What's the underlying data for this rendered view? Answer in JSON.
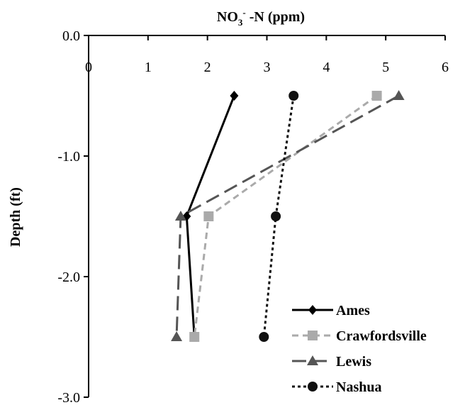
{
  "chart_data": {
    "type": "line",
    "title": {
      "main": "NO",
      "sub": "3",
      "sup": "-",
      "rest": " -N (ppm)"
    },
    "xlabel": "",
    "ylabel": "Depth (ft)",
    "xlim": [
      0,
      6
    ],
    "ylim": [
      -3.0,
      0.0
    ],
    "xticks": [
      "0",
      "1",
      "2",
      "3",
      "4",
      "5",
      "6"
    ],
    "yticks": [
      "0.0",
      "-1.0",
      "-2.0",
      "-3.0"
    ],
    "ytick_values": [
      0.0,
      -1.0,
      -2.0,
      -3.0
    ],
    "xtick_values": [
      0,
      1,
      2,
      3,
      4,
      5,
      6
    ],
    "x_axis_position": "top",
    "grid": false,
    "legend_position": "bottom-right",
    "series": [
      {
        "name": "Ames",
        "color": "#000000",
        "dash": "solid",
        "marker": "diamond",
        "points": [
          [
            2.45,
            -0.5
          ],
          [
            1.65,
            -1.5
          ],
          [
            1.78,
            -2.5
          ]
        ]
      },
      {
        "name": "Crawfordsville",
        "color": "#aaaaaa",
        "dash": "dash",
        "marker": "square",
        "points": [
          [
            4.85,
            -0.5
          ],
          [
            2.02,
            -1.5
          ],
          [
            1.78,
            -2.5
          ]
        ]
      },
      {
        "name": "Lewis",
        "color": "#555555",
        "dash": "longdash",
        "marker": "triangle",
        "points": [
          [
            5.22,
            -0.5
          ],
          [
            1.55,
            -1.5
          ],
          [
            1.48,
            -2.5
          ]
        ]
      },
      {
        "name": "Nashua",
        "color": "#111111",
        "dash": "dot",
        "marker": "circle",
        "points": [
          [
            3.45,
            -0.5
          ],
          [
            3.15,
            -1.5
          ],
          [
            2.95,
            -2.5
          ]
        ]
      }
    ]
  }
}
